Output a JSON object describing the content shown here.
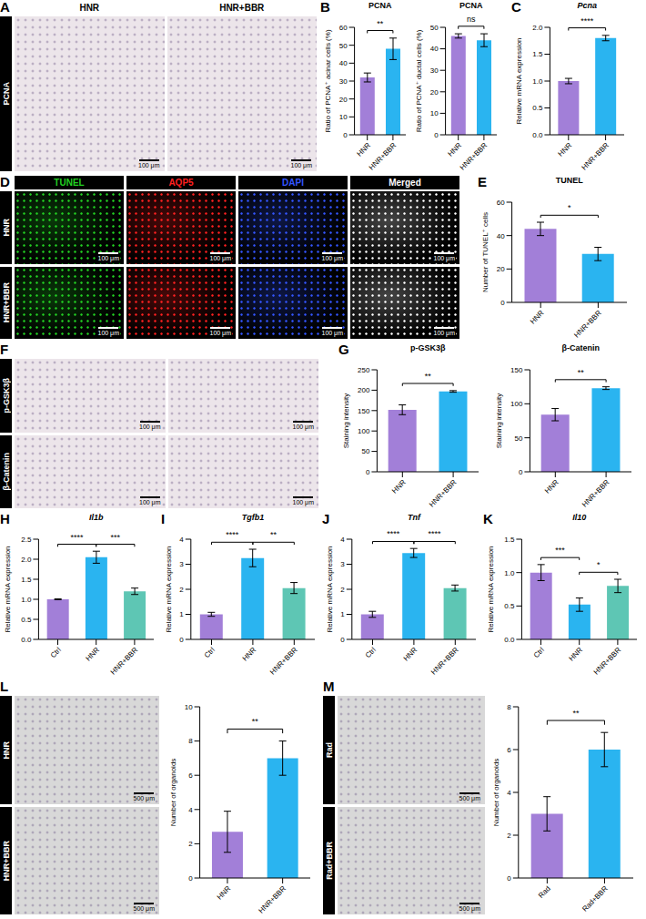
{
  "image_panels": [
    {
      "letter": "A",
      "columns": [
        "HNR",
        "HNR+BBR"
      ],
      "rows": [
        "PCNA"
      ],
      "color": "#ece5ea",
      "scale_bar": "100 μm"
    },
    {
      "letter": "D",
      "columns": [
        "TUNEL",
        "AQP5",
        "DAPI",
        "Merged"
      ],
      "rows": [
        "HNR",
        "HNR+BBR"
      ],
      "colors": [
        "#22d022",
        "#ff2020",
        "#3355ff",
        "#ffffff"
      ],
      "scale_bar": "100 μm"
    },
    {
      "letter": "F",
      "columns": [
        null,
        null
      ],
      "rows": [
        "p-GSK3β",
        "β-Catenin"
      ],
      "color": "#ece5ea",
      "scale_bar": "100 μm"
    },
    {
      "letter": "L",
      "columns": [
        null
      ],
      "rows": [
        "HNR",
        "HNR+BBR"
      ],
      "color": "#d8d8d8",
      "scale_bar": "500 μm"
    },
    {
      "letter": "M",
      "columns": [
        null
      ],
      "rows": [
        "Rad",
        "Rad+BBR"
      ],
      "color": "#d8d8d8",
      "scale_bar": "500 μm"
    }
  ],
  "chart_data": [
    {
      "panel": "B",
      "type": "bar",
      "title": "PCNA",
      "y_label": "Ratio of PCNA⁺ acinar cells (%)",
      "categories": [
        "HNR",
        "HNR+BBR"
      ],
      "values": [
        32,
        48
      ],
      "errors": [
        2.5,
        6
      ],
      "colors": [
        "#a27fd8",
        "#2ab4f0"
      ],
      "ylim": [
        0,
        60
      ],
      "yticks": [
        0,
        10,
        20,
        30,
        40,
        50,
        60
      ],
      "significance": [
        {
          "between": [
            "HNR",
            "HNR+BBR"
          ],
          "label": "**"
        }
      ]
    },
    {
      "type": "bar",
      "title": "PCNA",
      "y_label": "Ratio of PCNA⁺ ductal cells (%)",
      "categories": [
        "HNR",
        "HNR+BBR"
      ],
      "values": [
        46,
        44
      ],
      "errors": [
        1,
        3
      ],
      "colors": [
        "#a27fd8",
        "#2ab4f0"
      ],
      "ylim": [
        0,
        50
      ],
      "yticks": [
        0,
        10,
        20,
        30,
        40,
        50
      ],
      "significance": [
        {
          "between": [
            "HNR",
            "HNR+BBR"
          ],
          "label": "ns"
        }
      ]
    },
    {
      "panel": "C",
      "type": "bar",
      "title": "Pcna",
      "y_label": "Relative mRNA expression",
      "categories": [
        "HNR",
        "HNR+BBR"
      ],
      "values": [
        1.0,
        1.8
      ],
      "errors": [
        0.05,
        0.05
      ],
      "colors": [
        "#a27fd8",
        "#2ab4f0"
      ],
      "ylim": [
        0,
        2
      ],
      "yticks": [
        {
          "value": 0,
          "label": "0.0"
        },
        0.5,
        {
          "value": 1,
          "label": "1.0"
        },
        1.5,
        {
          "value": 2,
          "label": "2.0"
        }
      ],
      "significance": [
        {
          "between": [
            "HNR",
            "HNR+BBR"
          ],
          "label": "****"
        }
      ]
    },
    {
      "panel": "E",
      "type": "bar",
      "title": "TUNEL",
      "y_label": "Number of TUNEL⁺ cells",
      "categories": [
        "HNR",
        "HNR+BBR"
      ],
      "values": [
        44,
        29
      ],
      "errors": [
        4,
        4
      ],
      "colors": [
        "#a27fd8",
        "#2ab4f0"
      ],
      "ylim": [
        0,
        60
      ],
      "yticks": [
        0,
        20,
        40,
        60
      ],
      "significance": [
        {
          "between": [
            "HNR",
            "HNR+BBR"
          ],
          "label": "*"
        }
      ]
    },
    {
      "panel": "G",
      "type": "bar",
      "title": "p-GSK3β",
      "y_label": "Staining intensity",
      "categories": [
        "HNR",
        "HNR+BBR"
      ],
      "values": [
        152,
        197
      ],
      "errors": [
        12,
        2
      ],
      "colors": [
        "#a27fd8",
        "#2ab4f0"
      ],
      "ylim": [
        0,
        250
      ],
      "yticks": [
        0,
        50,
        100,
        150,
        200,
        250
      ],
      "significance": [
        {
          "between": [
            "HNR",
            "HNR+BBR"
          ],
          "label": "**"
        }
      ]
    },
    {
      "type": "bar",
      "title": "β-Catenin",
      "y_label": "Staining intensity",
      "categories": [
        "HNR",
        "HNR+BBR"
      ],
      "values": [
        84,
        123
      ],
      "errors": [
        9,
        2
      ],
      "colors": [
        "#a27fd8",
        "#2ab4f0"
      ],
      "ylim": [
        0,
        150
      ],
      "yticks": [
        0,
        50,
        100,
        150
      ],
      "significance": [
        {
          "between": [
            "HNR",
            "HNR+BBR"
          ],
          "label": "**"
        }
      ]
    },
    {
      "panel": "H",
      "type": "bar",
      "title": "Il1b",
      "y_label": "Relative mRNA expression",
      "categories": [
        "Ctrl",
        "HNR",
        "HNR+BBR"
      ],
      "values": [
        1.0,
        2.05,
        1.2
      ],
      "errors": [
        0.01,
        0.15,
        0.08
      ],
      "colors": [
        "#a27fd8",
        "#2ab4f0",
        "#5ec6b4"
      ],
      "ylim": [
        0,
        2.5
      ],
      "yticks": [
        {
          "value": 0,
          "label": "0.0"
        },
        0.5,
        {
          "value": 1,
          "label": "1.0"
        },
        1.5,
        {
          "value": 2,
          "label": "2.0"
        },
        2.5
      ],
      "significance": [
        {
          "between": [
            "Ctrl",
            "HNR"
          ],
          "label": "****"
        },
        {
          "between": [
            "HNR",
            "HNR+BBR"
          ],
          "label": "***"
        }
      ]
    },
    {
      "panel": "I",
      "type": "bar",
      "title": "Tgfb1",
      "y_label": "Relative mRNA expression",
      "categories": [
        "Ctrl",
        "HNR",
        "HNR+BBR"
      ],
      "values": [
        1.0,
        3.25,
        2.05
      ],
      "errors": [
        0.08,
        0.35,
        0.22
      ],
      "colors": [
        "#a27fd8",
        "#2ab4f0",
        "#5ec6b4"
      ],
      "ylim": [
        0,
        4
      ],
      "yticks": [
        0,
        1,
        2,
        3,
        4
      ],
      "significance": [
        {
          "between": [
            "Ctrl",
            "HNR"
          ],
          "label": "****"
        },
        {
          "between": [
            "HNR",
            "HNR+BBR"
          ],
          "label": "**"
        }
      ]
    },
    {
      "panel": "J",
      "type": "bar",
      "title": "Tnf",
      "y_label": "Relative mRNA expression",
      "categories": [
        "Ctrl",
        "HNR",
        "HNR+BBR"
      ],
      "values": [
        1.0,
        3.45,
        2.05
      ],
      "errors": [
        0.12,
        0.18,
        0.12
      ],
      "colors": [
        "#a27fd8",
        "#2ab4f0",
        "#5ec6b4"
      ],
      "ylim": [
        0,
        4
      ],
      "yticks": [
        0,
        1,
        2,
        3,
        4
      ],
      "significance": [
        {
          "between": [
            "Ctrl",
            "HNR"
          ],
          "label": "****"
        },
        {
          "between": [
            "HNR",
            "HNR+BBR"
          ],
          "label": "****"
        }
      ]
    },
    {
      "panel": "K",
      "type": "bar",
      "title": "Il10",
      "y_label": "Relative mRNA expression",
      "categories": [
        "Ctrl",
        "HNR",
        "HNR+BBR"
      ],
      "values": [
        1.0,
        0.52,
        0.8
      ],
      "errors": [
        0.12,
        0.1,
        0.1
      ],
      "colors": [
        "#a27fd8",
        "#2ab4f0",
        "#5ec6b4"
      ],
      "ylim": [
        0,
        1.5
      ],
      "yticks": [
        {
          "value": 0,
          "label": "0.0"
        },
        0.5,
        {
          "value": 1,
          "label": "1.0"
        },
        1.5
      ],
      "significance": [
        {
          "between": [
            "Ctrl",
            "HNR"
          ],
          "label": "***"
        },
        {
          "between": [
            "HNR",
            "HNR+BBR"
          ],
          "label": "*"
        }
      ]
    },
    {
      "type": "bar",
      "y_label": "Number of organoids",
      "categories": [
        "HNR",
        "HNR+BBR"
      ],
      "values": [
        2.7,
        7.0
      ],
      "errors": [
        1.2,
        1.0
      ],
      "colors": [
        "#a27fd8",
        "#2ab4f0"
      ],
      "ylim": [
        0,
        10
      ],
      "yticks": [
        0,
        2,
        4,
        6,
        8,
        10
      ],
      "significance": [
        {
          "between": [
            "HNR",
            "HNR+BBR"
          ],
          "label": "**"
        }
      ]
    },
    {
      "type": "bar",
      "y_label": "Number of organoids",
      "categories": [
        "Rad",
        "Rad+BBR"
      ],
      "values": [
        3.0,
        6.0
      ],
      "errors": [
        0.8,
        0.8
      ],
      "colors": [
        "#a27fd8",
        "#2ab4f0"
      ],
      "ylim": [
        0,
        8
      ],
      "yticks": [
        0,
        2,
        4,
        6,
        8
      ],
      "significance": [
        {
          "between": [
            "Rad",
            "Rad+BBR"
          ],
          "label": "**"
        }
      ]
    }
  ]
}
